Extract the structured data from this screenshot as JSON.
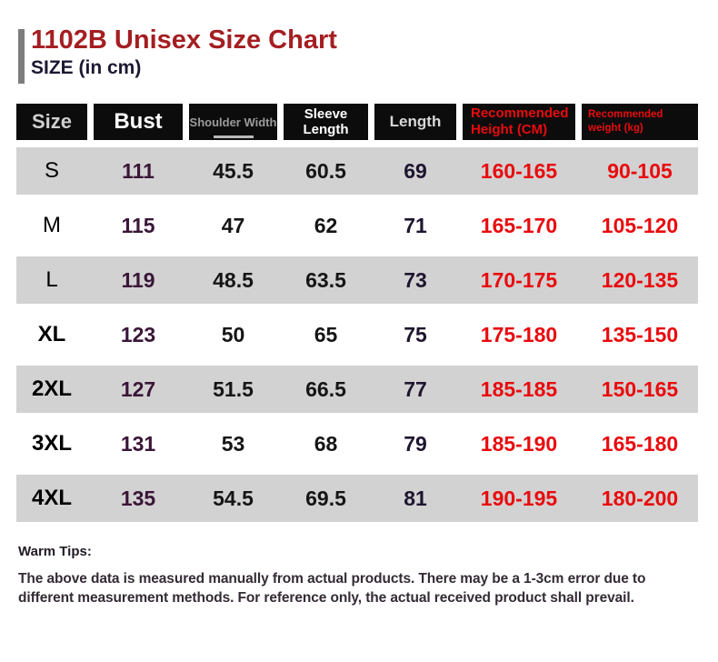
{
  "header": {
    "title": "1102B Unisex Size Chart",
    "subtitle": "SIZE (in cm)"
  },
  "table": {
    "columns": [
      {
        "key": "size",
        "label": "Size"
      },
      {
        "key": "bust",
        "label": "Bust"
      },
      {
        "key": "shoulder_width",
        "label": "Shoulder Width"
      },
      {
        "key": "sleeve_length",
        "label": "Sleeve Length"
      },
      {
        "key": "length",
        "label": "Length"
      },
      {
        "key": "recommended_height",
        "label": "Recommended Height (CM)"
      },
      {
        "key": "recommended_weight",
        "label": "Recommended weight (kg)"
      }
    ]
  },
  "chart_data": {
    "type": "table",
    "title": "1102B Unisex Size Chart",
    "subtitle": "SIZE (in cm)",
    "columns": [
      "Size",
      "Bust",
      "Shoulder Width",
      "Sleeve Length",
      "Length",
      "Recommended Height (CM)",
      "Recommended weight (kg)"
    ],
    "rows": [
      [
        "S",
        "111",
        "45.5",
        "60.5",
        "69",
        "160-165",
        "90-105"
      ],
      [
        "M",
        "115",
        "47",
        "62",
        "71",
        "165-170",
        "105-120"
      ],
      [
        "L",
        "119",
        "48.5",
        "63.5",
        "73",
        "170-175",
        "120-135"
      ],
      [
        "XL",
        "123",
        "50",
        "65",
        "75",
        "175-180",
        "135-150"
      ],
      [
        "2XL",
        "127",
        "51.5",
        "66.5",
        "77",
        "185-185",
        "150-165"
      ],
      [
        "3XL",
        "131",
        "53",
        "68",
        "79",
        "185-190",
        "165-180"
      ],
      [
        "4XL",
        "135",
        "54.5",
        "69.5",
        "81",
        "190-195",
        "180-200"
      ]
    ]
  },
  "footer": {
    "tips_title": "Warm Tips:",
    "tips_body": "The above data is measured manually from actual products. There may be a 1-3cm error due to different measurement methods. For reference only, the actual received product shall prevail."
  },
  "colors": {
    "title_red": "#a41e22",
    "subtitle_navy": "#1d1832",
    "header_bg": "#0c0c0c",
    "accent_red": "#e80b0e",
    "row_gray": "#d3d2d2",
    "bust_purple": "#3a1638",
    "length_navy": "#1f1530",
    "accent_bar_gray": "#7d7d7d"
  }
}
